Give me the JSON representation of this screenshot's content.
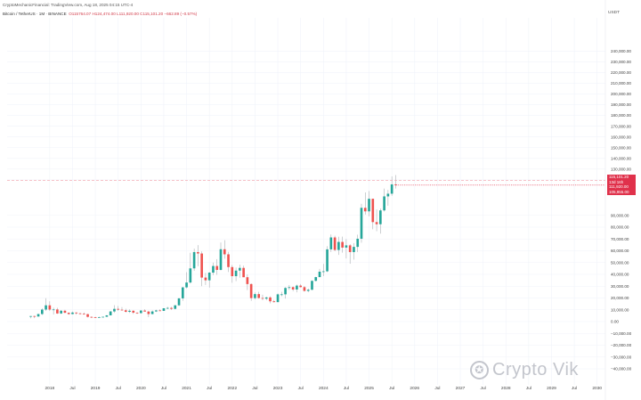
{
  "header": {
    "line1": "CryptoMechanicFinancial: TradingView.com, Aug 18, 2025 04:15 UTC-4",
    "symbol": "Bitcoin / TetherUS · 1M · BINANCE",
    "ohlc": "O115764.07 H124,474.00 L111,920.00 C115,101.20 −662.89 (−0.57%)"
  },
  "currency": "USDT",
  "price_box": {
    "price": "115,101.20",
    "line2": "13d 16h",
    "line3": "111,920.00",
    "line4": "105,955.00"
  },
  "watermark": "Crypto Vik",
  "colors": {
    "up": "#26a69a",
    "down": "#ef5350",
    "grid": "#f0f3fa",
    "price_line": "#e0314b"
  },
  "chart_data": {
    "type": "candlestick",
    "y_scale": "custom (compressed above 100,000)",
    "y_ticks": [
      {
        "label": "240,000.00",
        "value": 240000
      },
      {
        "label": "230,000.00",
        "value": 230000
      },
      {
        "label": "220,000.00",
        "value": 220000
      },
      {
        "label": "210,000.00",
        "value": 210000
      },
      {
        "label": "200,000.00",
        "value": 200000
      },
      {
        "label": "190,000.00",
        "value": 190000
      },
      {
        "label": "180,000.00",
        "value": 180000
      },
      {
        "label": "170,000.00",
        "value": 170000
      },
      {
        "label": "160,000.00",
        "value": 160000
      },
      {
        "label": "150,000.00",
        "value": 150000
      },
      {
        "label": "140,000.00",
        "value": 140000
      },
      {
        "label": "130,000.00",
        "value": 130000
      },
      {
        "label": "120,000.00",
        "value": 120000
      },
      {
        "label": "90,000.00",
        "value": 90000
      },
      {
        "label": "80,000.00",
        "value": 80000
      },
      {
        "label": "70,000.00",
        "value": 70000
      },
      {
        "label": "60,000.00",
        "value": 60000
      },
      {
        "label": "50,000.00",
        "value": 50000
      },
      {
        "label": "40,000.00",
        "value": 40000
      },
      {
        "label": "30,000.00",
        "value": 30000
      },
      {
        "label": "20,000.00",
        "value": 20000
      },
      {
        "label": "10,000.00",
        "value": 10000
      },
      {
        "label": "0.00",
        "value": 0
      },
      {
        "label": "−10,000.00",
        "value": -10000
      },
      {
        "label": "−20,000.00",
        "value": -20000
      },
      {
        "label": "−30,000.00",
        "value": -30000
      },
      {
        "label": "−40,000.00",
        "value": -40000
      }
    ],
    "x_ticks": [
      "2018",
      "Jul",
      "2019",
      "Jul",
      "2020",
      "Jul",
      "2021",
      "Jul",
      "2022",
      "Jul",
      "2023",
      "Jul",
      "2024",
      "Jul",
      "2025",
      "Jul",
      "2026",
      "Jul",
      "2027",
      "Jul",
      "2028",
      "Jul",
      "2029",
      "Jul",
      "2030"
    ],
    "x_start": "2017-08",
    "candles": [
      {
        "o": 4300,
        "h": 4700,
        "l": 2800,
        "c": 4700
      },
      {
        "o": 4700,
        "h": 5000,
        "l": 2900,
        "c": 4300
      },
      {
        "o": 4300,
        "h": 6500,
        "l": 4200,
        "c": 6400
      },
      {
        "o": 6400,
        "h": 11200,
        "l": 5600,
        "c": 10200
      },
      {
        "o": 10200,
        "h": 19800,
        "l": 9000,
        "c": 13800
      },
      {
        "o": 13800,
        "h": 17200,
        "l": 9000,
        "c": 10200
      },
      {
        "o": 10200,
        "h": 11800,
        "l": 6000,
        "c": 10300
      },
      {
        "o": 10300,
        "h": 11700,
        "l": 6500,
        "c": 6900
      },
      {
        "o": 6900,
        "h": 9800,
        "l": 6400,
        "c": 9200
      },
      {
        "o": 9200,
        "h": 10000,
        "l": 7000,
        "c": 7500
      },
      {
        "o": 7500,
        "h": 7800,
        "l": 5800,
        "c": 6400
      },
      {
        "o": 6400,
        "h": 8500,
        "l": 6100,
        "c": 7700
      },
      {
        "o": 7700,
        "h": 7800,
        "l": 5900,
        "c": 7000
      },
      {
        "o": 7000,
        "h": 7400,
        "l": 6200,
        "c": 6600
      },
      {
        "o": 6600,
        "h": 7700,
        "l": 6200,
        "c": 6300
      },
      {
        "o": 6300,
        "h": 6600,
        "l": 3500,
        "c": 4000
      },
      {
        "o": 4000,
        "h": 4300,
        "l": 3100,
        "c": 3700
      },
      {
        "o": 3700,
        "h": 4100,
        "l": 3300,
        "c": 3400
      },
      {
        "o": 3400,
        "h": 4200,
        "l": 3300,
        "c": 3800
      },
      {
        "o": 3800,
        "h": 4100,
        "l": 3700,
        "c": 4100
      },
      {
        "o": 4100,
        "h": 5500,
        "l": 4000,
        "c": 5300
      },
      {
        "o": 5300,
        "h": 9000,
        "l": 5300,
        "c": 8600
      },
      {
        "o": 8600,
        "h": 13900,
        "l": 7400,
        "c": 10800
      },
      {
        "o": 10800,
        "h": 13200,
        "l": 9100,
        "c": 10100
      },
      {
        "o": 10100,
        "h": 12300,
        "l": 9300,
        "c": 9600
      },
      {
        "o": 9600,
        "h": 10900,
        "l": 7700,
        "c": 8300
      },
      {
        "o": 8300,
        "h": 10400,
        "l": 7300,
        "c": 9200
      },
      {
        "o": 9200,
        "h": 9500,
        "l": 6500,
        "c": 7600
      },
      {
        "o": 7600,
        "h": 7900,
        "l": 6500,
        "c": 7200
      },
      {
        "o": 7200,
        "h": 9600,
        "l": 6900,
        "c": 9400
      },
      {
        "o": 9400,
        "h": 10500,
        "l": 8600,
        "c": 8500
      },
      {
        "o": 8500,
        "h": 9200,
        "l": 3800,
        "c": 6400
      },
      {
        "o": 6400,
        "h": 9500,
        "l": 6200,
        "c": 8600
      },
      {
        "o": 8600,
        "h": 10100,
        "l": 8100,
        "c": 9500
      },
      {
        "o": 9500,
        "h": 10400,
        "l": 8900,
        "c": 9100
      },
      {
        "o": 9100,
        "h": 11400,
        "l": 9000,
        "c": 11300
      },
      {
        "o": 11300,
        "h": 12500,
        "l": 10600,
        "c": 11600
      },
      {
        "o": 11600,
        "h": 12500,
        "l": 9800,
        "c": 10800
      },
      {
        "o": 10800,
        "h": 14000,
        "l": 10400,
        "c": 13800
      },
      {
        "o": 13800,
        "h": 19900,
        "l": 13200,
        "c": 19700
      },
      {
        "o": 19700,
        "h": 29300,
        "l": 17600,
        "c": 29000
      },
      {
        "o": 29000,
        "h": 41900,
        "l": 28100,
        "c": 33100
      },
      {
        "o": 33100,
        "h": 58300,
        "l": 32300,
        "c": 45100
      },
      {
        "o": 45100,
        "h": 61800,
        "l": 43000,
        "c": 58900
      },
      {
        "o": 58900,
        "h": 64800,
        "l": 46900,
        "c": 57700
      },
      {
        "o": 57700,
        "h": 59500,
        "l": 30000,
        "c": 37300
      },
      {
        "o": 37300,
        "h": 41300,
        "l": 31000,
        "c": 35000
      },
      {
        "o": 35000,
        "h": 42000,
        "l": 28800,
        "c": 41500
      },
      {
        "o": 41500,
        "h": 50000,
        "l": 39400,
        "c": 47100
      },
      {
        "o": 47100,
        "h": 52900,
        "l": 39600,
        "c": 43800
      },
      {
        "o": 43800,
        "h": 67000,
        "l": 43300,
        "c": 61300
      },
      {
        "o": 61300,
        "h": 69000,
        "l": 53300,
        "c": 57000
      },
      {
        "o": 57000,
        "h": 59100,
        "l": 42000,
        "c": 46200
      },
      {
        "o": 46200,
        "h": 48000,
        "l": 32900,
        "c": 38500
      },
      {
        "o": 38500,
        "h": 45800,
        "l": 34300,
        "c": 43200
      },
      {
        "o": 43200,
        "h": 48200,
        "l": 37200,
        "c": 45500
      },
      {
        "o": 45500,
        "h": 47400,
        "l": 37700,
        "c": 37600
      },
      {
        "o": 37600,
        "h": 40000,
        "l": 26700,
        "c": 31800
      },
      {
        "o": 31800,
        "h": 32400,
        "l": 17600,
        "c": 19900
      },
      {
        "o": 19900,
        "h": 24700,
        "l": 18800,
        "c": 23300
      },
      {
        "o": 23300,
        "h": 25200,
        "l": 19500,
        "c": 20000
      },
      {
        "o": 20000,
        "h": 22800,
        "l": 18100,
        "c": 19400
      },
      {
        "o": 19400,
        "h": 21000,
        "l": 18200,
        "c": 20500
      },
      {
        "o": 20500,
        "h": 21400,
        "l": 15500,
        "c": 17200
      },
      {
        "o": 17200,
        "h": 18400,
        "l": 16200,
        "c": 16500
      },
      {
        "o": 16500,
        "h": 23900,
        "l": 16500,
        "c": 23100
      },
      {
        "o": 23100,
        "h": 25200,
        "l": 21400,
        "c": 23100
      },
      {
        "o": 23100,
        "h": 29200,
        "l": 19500,
        "c": 28500
      },
      {
        "o": 28500,
        "h": 31000,
        "l": 26900,
        "c": 29200
      },
      {
        "o": 29200,
        "h": 29800,
        "l": 25800,
        "c": 27200
      },
      {
        "o": 27200,
        "h": 31400,
        "l": 24800,
        "c": 30500
      },
      {
        "o": 30500,
        "h": 31800,
        "l": 28900,
        "c": 29200
      },
      {
        "o": 29200,
        "h": 30200,
        "l": 25400,
        "c": 26000
      },
      {
        "o": 26000,
        "h": 28000,
        "l": 24900,
        "c": 27000
      },
      {
        "o": 27000,
        "h": 35000,
        "l": 26500,
        "c": 34500
      },
      {
        "o": 34500,
        "h": 38000,
        "l": 34100,
        "c": 37700
      },
      {
        "o": 37700,
        "h": 44700,
        "l": 37600,
        "c": 42300
      },
      {
        "o": 42300,
        "h": 48900,
        "l": 38500,
        "c": 42600
      },
      {
        "o": 42600,
        "h": 63900,
        "l": 41900,
        "c": 61200
      },
      {
        "o": 61200,
        "h": 73800,
        "l": 59000,
        "c": 71300
      },
      {
        "o": 71300,
        "h": 72800,
        "l": 59600,
        "c": 60700
      },
      {
        "o": 60700,
        "h": 71900,
        "l": 56500,
        "c": 67500
      },
      {
        "o": 67500,
        "h": 72000,
        "l": 58400,
        "c": 62700
      },
      {
        "o": 62700,
        "h": 70000,
        "l": 53500,
        "c": 64600
      },
      {
        "o": 64600,
        "h": 65600,
        "l": 49000,
        "c": 58900
      },
      {
        "o": 58900,
        "h": 66500,
        "l": 52500,
        "c": 63300
      },
      {
        "o": 63300,
        "h": 73600,
        "l": 58900,
        "c": 70200
      },
      {
        "o": 70200,
        "h": 99800,
        "l": 66800,
        "c": 96400
      },
      {
        "o": 96400,
        "h": 108300,
        "l": 90700,
        "c": 93400
      },
      {
        "o": 93400,
        "h": 109600,
        "l": 89200,
        "c": 102400
      },
      {
        "o": 102400,
        "h": 102500,
        "l": 78200,
        "c": 84300
      },
      {
        "o": 84300,
        "h": 95000,
        "l": 76600,
        "c": 82500
      },
      {
        "o": 82500,
        "h": 95800,
        "l": 74500,
        "c": 94200
      },
      {
        "o": 94200,
        "h": 111900,
        "l": 93300,
        "c": 104600
      },
      {
        "o": 104600,
        "h": 110600,
        "l": 98200,
        "c": 107100
      },
      {
        "o": 107100,
        "h": 123200,
        "l": 105100,
        "c": 115800
      },
      {
        "o": 115800,
        "h": 124500,
        "l": 111900,
        "c": 115100
      }
    ]
  }
}
